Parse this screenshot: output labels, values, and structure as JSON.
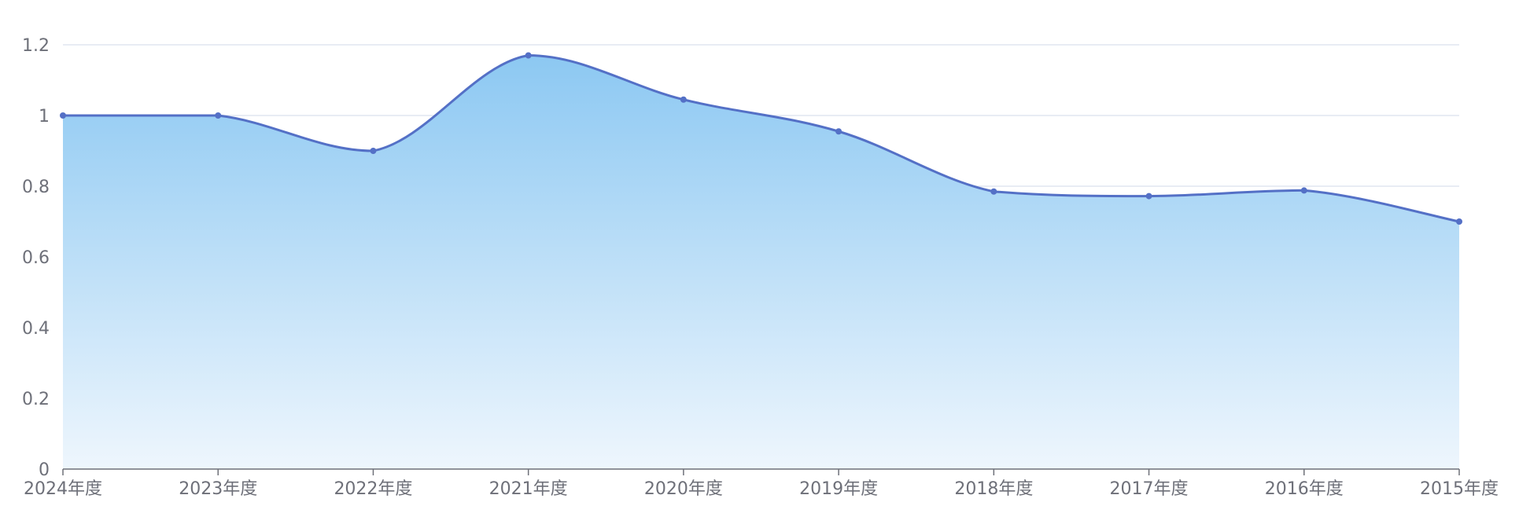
{
  "chart_data": {
    "type": "area",
    "smooth": true,
    "categories": [
      "2024年度",
      "2023年度",
      "2022年度",
      "2021年度",
      "2020年度",
      "2019年度",
      "2018年度",
      "2017年度",
      "2016年度",
      "2015年度"
    ],
    "values": [
      1.0,
      1.0,
      0.9,
      1.17,
      1.045,
      0.955,
      0.785,
      0.772,
      0.788,
      0.7
    ],
    "title": "",
    "xlabel": "",
    "ylabel": "",
    "ylim": [
      0,
      1.2
    ],
    "yticks": [
      "0",
      "0.2",
      "0.4",
      "0.6",
      "0.8",
      "1",
      "1.2"
    ],
    "grid": true,
    "legend": "none",
    "colors": {
      "line": "#5470c6",
      "area_top": "#8cc8f2",
      "area_bottom": "#eef6fd",
      "grid": "#e0e6f1",
      "axis": "#6e7079",
      "label": "#6e7079"
    }
  }
}
